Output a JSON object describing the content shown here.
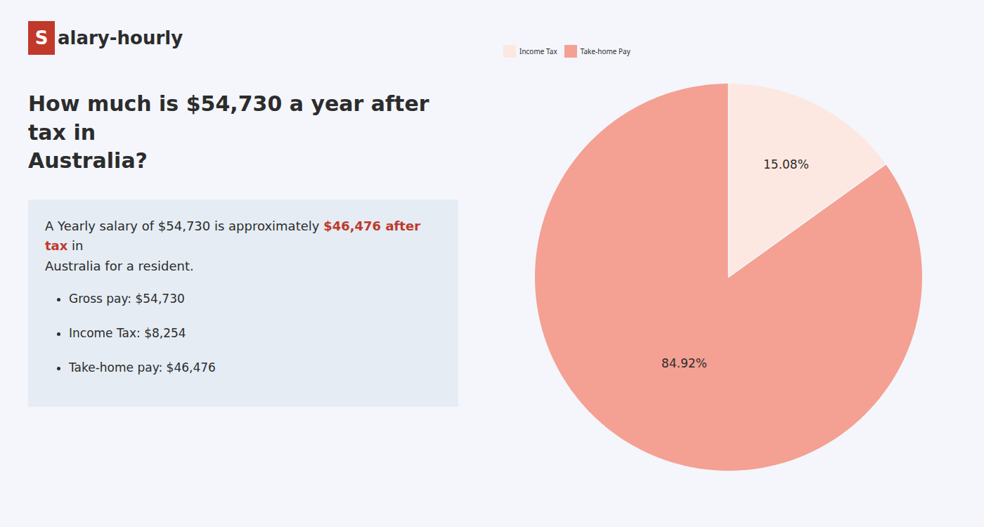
{
  "chart_data": {
    "type": "pie",
    "title": "How much is $54,730 a year after tax in\nAustralia?",
    "categories": [
      "Income Tax",
      "Take-home Pay"
    ],
    "values": [
      15.08,
      84.92
    ],
    "value_labels": [
      "15.08%",
      "84.92%"
    ],
    "colors": [
      "#fce8e0",
      "#f4a093"
    ],
    "data_labels": true,
    "legend": "top",
    "annotations": [
      {
        "text": "S",
        "color": "#c0392b"
      },
      {
        "text": "alary-hourly"
      },
      {
        "text": "A Yearly salary of $54,730 is approximately "
      },
      {
        "text": "$46,476 after tax",
        "color": "#c0392b"
      },
      {
        "text": " in"
      },
      {
        "text": "Australia for a resident."
      },
      {
        "text": "Gross pay: $54,730"
      },
      {
        "text": "Income Tax: $8,254"
      },
      {
        "text": "Take-home pay: $46,476"
      }
    ]
  }
}
